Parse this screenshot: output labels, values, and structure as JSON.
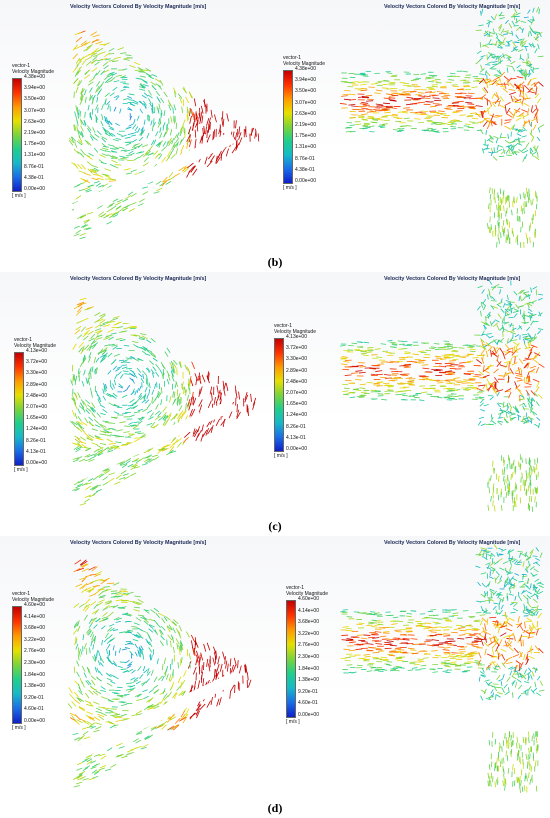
{
  "panels": [
    {
      "caption": "(b)",
      "left_title": "Velocity Vectors Colored By Velocity Magnitude [m/s]",
      "right_title": "Velocity Vectors Colored By Velocity Magnitude [m/s]",
      "left_legend": {
        "name": "vector-1",
        "quantity": "Velocity Magnitude",
        "ticks": [
          "4.38e+00",
          "3.94e+00",
          "3.50e+00",
          "3.07e+00",
          "2.63e+00",
          "2.19e+00",
          "1.75e+00",
          "1.31e+00",
          "8.76e-01",
          "4.38e-01",
          "0.00e+00"
        ],
        "unit": "[ m/s ]"
      },
      "right_legend": {
        "name": "vector-1",
        "quantity": "Velocity Magnitude",
        "ticks": [
          "4.38e+00",
          "3.94e+00",
          "3.50e+00",
          "3.07e+00",
          "2.63e+00",
          "2.19e+00",
          "1.75e+00",
          "1.31e+00",
          "8.76e-01",
          "4.38e-01",
          "0.00e+00"
        ],
        "unit": "[ m/s ]"
      }
    },
    {
      "caption": "(c)",
      "left_title": "Velocity Vectors Colored By Velocity Magnitude [m/s]",
      "right_title": "Velocity Vectors Colored By Velocity Magnitude [m/s]",
      "left_legend": {
        "name": "vector-1",
        "quantity": "Velocity Magnitude",
        "ticks": [
          "4.13e+00",
          "3.72e+00",
          "3.30e+00",
          "2.89e+00",
          "2.48e+00",
          "2.07e+00",
          "1.65e+00",
          "1.24e+00",
          "8.26e-01",
          "4.13e-01",
          "0.00e+00"
        ],
        "unit": "[ m/s ]"
      },
      "right_legend": {
        "name": "vector-1",
        "quantity": "Velocity Magnitude",
        "ticks": [
          "4.13e+00",
          "3.72e+00",
          "3.30e+00",
          "2.89e+00",
          "2.48e+00",
          "2.07e+00",
          "1.65e+00",
          "1.24e+00",
          "8.26e-01",
          "4.13e-01",
          "0.00e+00"
        ],
        "unit": "[ m/s ]"
      }
    },
    {
      "caption": "(d)",
      "left_title": "Velocity Vectors Colored By Velocity Magnitude [m/s]",
      "right_title": "Velocity Vectors Colored By Velocity Magnitude [m/s]",
      "left_legend": {
        "name": "vector-1",
        "quantity": "Velocity Magnitude",
        "ticks": [
          "4.60e+00",
          "4.14e+00",
          "3.68e+00",
          "3.22e+00",
          "2.76e+00",
          "2.30e+00",
          "1.84e+00",
          "1.38e+00",
          "9.20e-01",
          "4.60e-01",
          "0.00e+00"
        ],
        "unit": "[ m/s ]"
      },
      "right_legend": {
        "name": "vector-1",
        "quantity": "Velocity Magnitude",
        "ticks": [
          "4.60e+00",
          "4.14e+00",
          "3.68e+00",
          "3.22e+00",
          "2.76e+00",
          "2.30e+00",
          "1.84e+00",
          "1.38e+00",
          "9.20e-01",
          "4.60e-01",
          "0.00e+00"
        ],
        "unit": "[ m/s ]"
      }
    }
  ],
  "colors": {
    "high": "#c40000",
    "mid": "#e6e000",
    "low": "#1020c8",
    "title": "#1b2a55"
  }
}
